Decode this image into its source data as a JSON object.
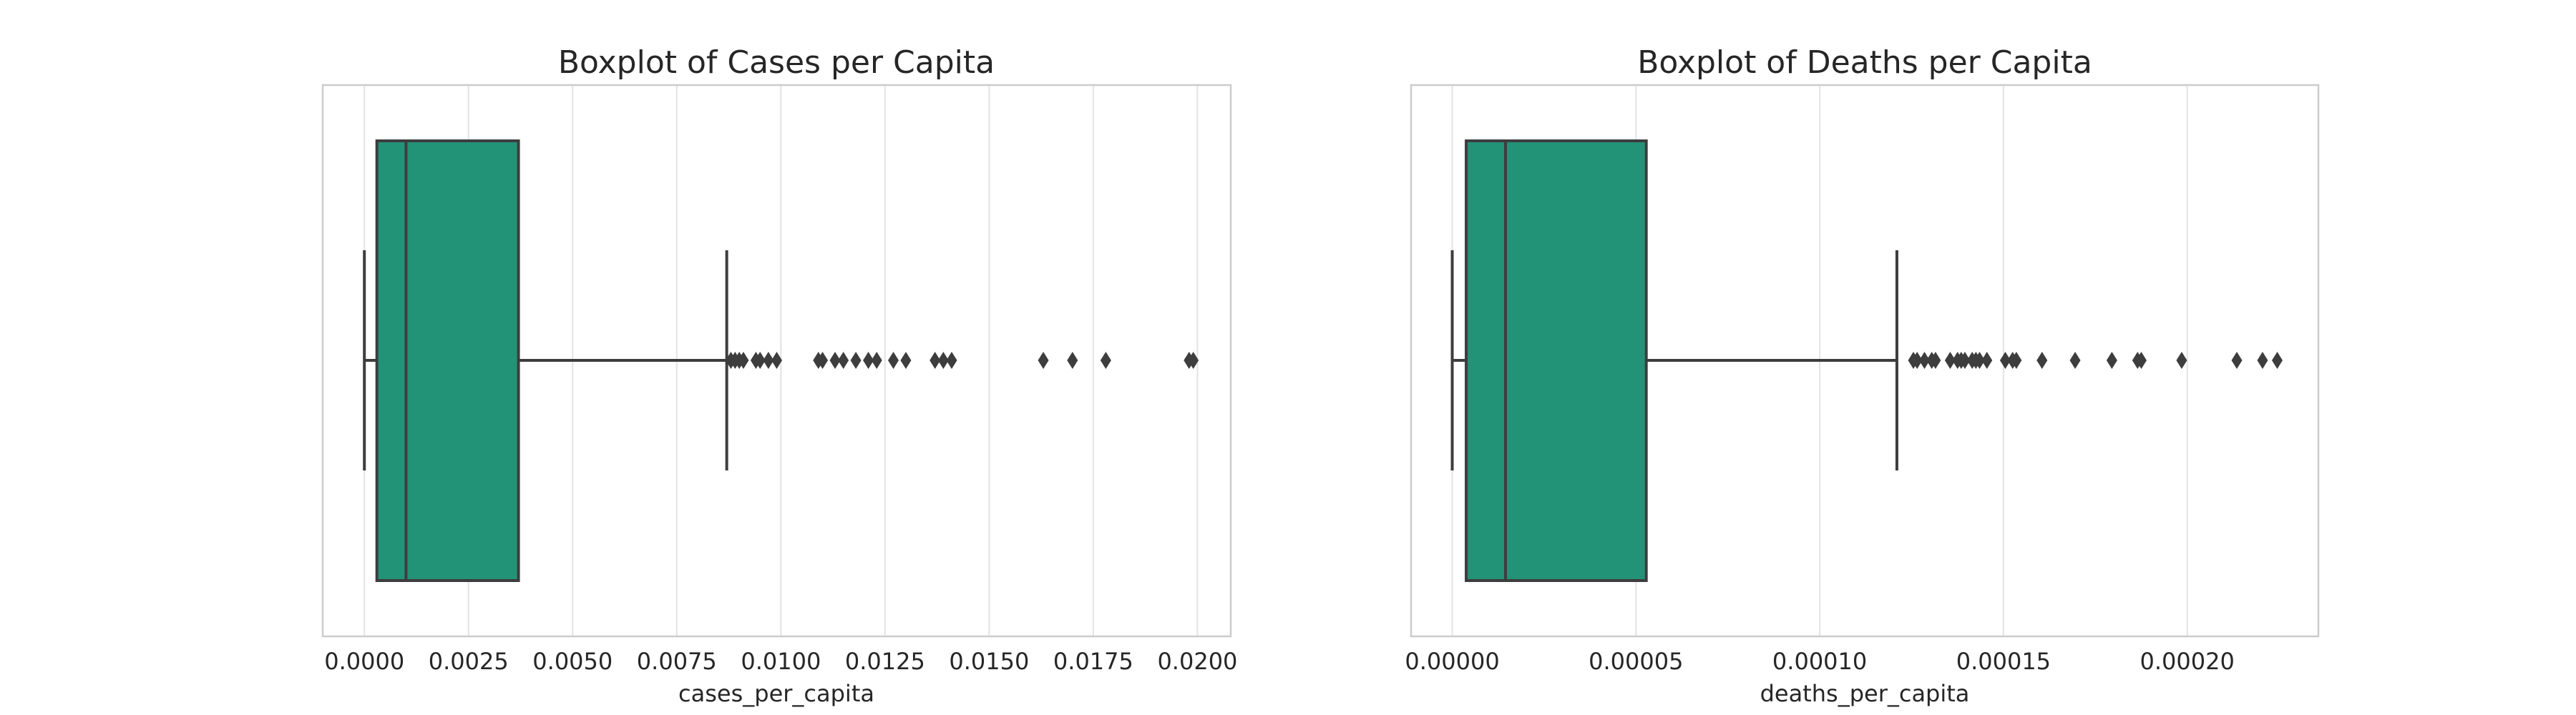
{
  "chart_data": [
    {
      "type": "boxplot",
      "orientation": "horizontal",
      "title": "Boxplot of Cases per Capita",
      "xlabel": "cases_per_capita",
      "ylabel": "",
      "xlim": [
        -0.001,
        0.0208
      ],
      "xticks": [
        0.0,
        0.0025,
        0.005,
        0.0075,
        0.01,
        0.0125,
        0.015,
        0.0175,
        0.02
      ],
      "xtick_labels": [
        "0.0000",
        "0.0025",
        "0.0050",
        "0.0075",
        "0.0100",
        "0.0125",
        "0.0150",
        "0.0175",
        "0.0200"
      ],
      "box": {
        "whisker_low": 0.0,
        "q1": 0.0003,
        "median": 0.001,
        "q3": 0.0037,
        "whisker_high": 0.0087
      },
      "outliers": [
        0.0088,
        0.0089,
        0.009,
        0.0091,
        0.0094,
        0.0095,
        0.0097,
        0.0099,
        0.0109,
        0.011,
        0.0113,
        0.0115,
        0.0118,
        0.0121,
        0.0123,
        0.0127,
        0.013,
        0.0137,
        0.0139,
        0.0141,
        0.0163,
        0.017,
        0.0178,
        0.0198,
        0.0199
      ],
      "grid": true,
      "color": "#239378"
    },
    {
      "type": "boxplot",
      "orientation": "horizontal",
      "title": "Boxplot of Deaths per Capita",
      "xlabel": "deaths_per_capita",
      "ylabel": "",
      "xlim": [
        -1.12e-05,
        0.0002357
      ],
      "xticks": [
        0.0,
        5e-05,
        0.0001,
        0.00015,
        0.0002
      ],
      "xtick_labels": [
        "0.00000",
        "0.00005",
        "0.00010",
        "0.00015",
        "0.00020"
      ],
      "box": {
        "whisker_low": 0.0,
        "q1": 3.8e-06,
        "median": 1.45e-05,
        "q3": 5.28e-05,
        "whisker_high": 0.000121
      },
      "outliers": [
        0.0001255,
        0.0001265,
        0.0001285,
        0.0001305,
        0.0001315,
        0.0001355,
        0.0001375,
        0.0001385,
        0.0001395,
        0.0001415,
        0.0001425,
        0.0001435,
        0.0001455,
        0.0001505,
        0.0001525,
        0.0001535,
        0.0001605,
        0.0001695,
        0.0001795,
        0.0001865,
        0.0001875,
        0.0001985,
        0.0002135,
        0.0002205,
        0.0002245
      ],
      "grid": true,
      "color": "#239378"
    }
  ]
}
